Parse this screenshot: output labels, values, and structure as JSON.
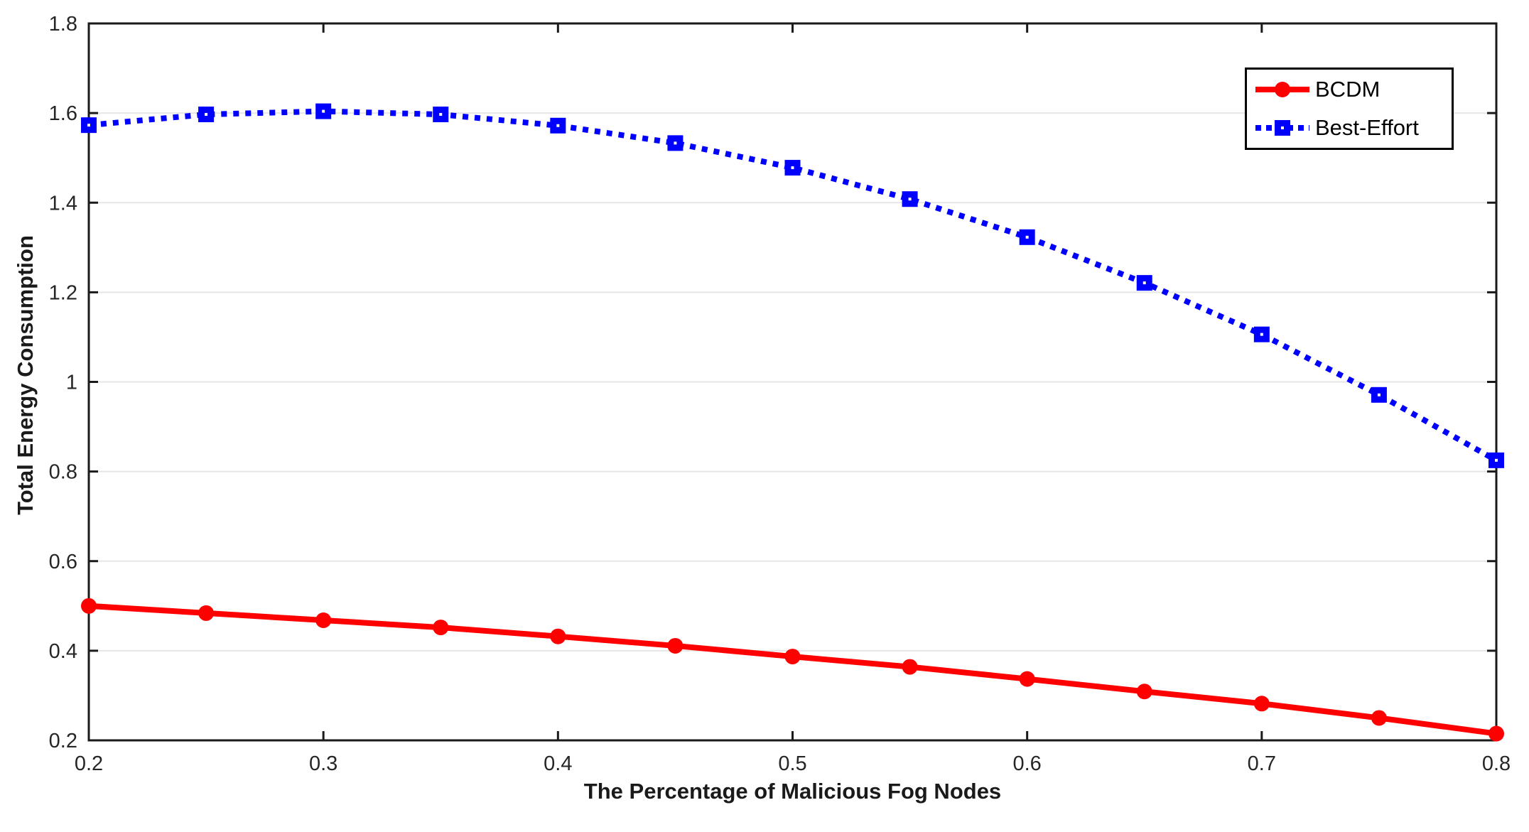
{
  "chart_data": {
    "type": "line",
    "title": "",
    "xlabel": "The Percentage of Malicious Fog Nodes",
    "ylabel": "Total Energy Consumption",
    "xlim": [
      0.2,
      0.8
    ],
    "ylim": [
      0.2,
      1.8
    ],
    "xticks": [
      0.2,
      0.3,
      0.4,
      0.5,
      0.6,
      0.7,
      0.8
    ],
    "xtick_labels": [
      "0.2",
      "0.3",
      "0.4",
      "0.5",
      "0.6",
      "0.7",
      "0.8"
    ],
    "yticks": [
      0.2,
      0.4,
      0.6,
      0.8,
      1.0,
      1.2,
      1.4,
      1.6,
      1.8
    ],
    "ytick_labels": [
      "0.2",
      "0.4",
      "0.6",
      "0.8",
      "1",
      "1.2",
      "1.4",
      "1.6",
      "1.8"
    ],
    "grid": "horizontal",
    "legend_position": "top-right",
    "x": [
      0.2,
      0.25,
      0.3,
      0.35,
      0.4,
      0.45,
      0.5,
      0.55,
      0.6,
      0.65,
      0.7,
      0.75,
      0.8
    ],
    "series": [
      {
        "name": "BCDM",
        "color": "#ff0000",
        "line_style": "solid",
        "marker": "circle",
        "values": [
          0.5,
          0.484,
          0.468,
          0.452,
          0.432,
          0.411,
          0.387,
          0.364,
          0.337,
          0.309,
          0.282,
          0.25,
          0.215
        ]
      },
      {
        "name": "Best-Effort",
        "color": "#0000ff",
        "line_style": "dotted",
        "marker": "square",
        "values": [
          1.573,
          1.597,
          1.604,
          1.597,
          1.572,
          1.533,
          1.478,
          1.408,
          1.323,
          1.221,
          1.106,
          0.971,
          0.825
        ]
      }
    ],
    "colors": {
      "axis": "#1a1a1a",
      "grid": "#e6e6e6",
      "tick_text": "#262626",
      "background": "#ffffff"
    }
  }
}
